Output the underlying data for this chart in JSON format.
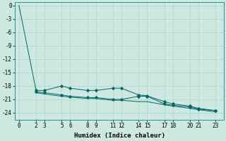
{
  "xlabel": "Humidex (Indice chaleur)",
  "bg_color": "#cce8e0",
  "line_color": "#006666",
  "grid_color": "#aad4cc",
  "ylim": [
    -25.5,
    0.8
  ],
  "xlim": [
    -0.5,
    24
  ],
  "yticks": [
    0,
    -3,
    -6,
    -9,
    -12,
    -15,
    -18,
    -21,
    -24
  ],
  "xticks": [
    0,
    2,
    3,
    5,
    6,
    8,
    9,
    11,
    12,
    14,
    15,
    17,
    18,
    20,
    21,
    23
  ],
  "xtick_labels": [
    "0",
    "2",
    "3",
    "5",
    "6",
    "8",
    "9",
    "11",
    "12",
    "14",
    "15",
    "17",
    "18",
    "20",
    "21",
    "23"
  ],
  "line1_x": [
    0,
    2,
    3,
    5,
    6,
    8,
    9,
    11,
    12,
    14,
    15,
    17,
    18,
    20,
    21,
    23
  ],
  "line1_y": [
    0,
    -19.0,
    -19.0,
    -18.0,
    -18.5,
    -19.0,
    -19.0,
    -18.5,
    -18.5,
    -20.0,
    -20.2,
    -21.5,
    -22.0,
    -22.5,
    -23.0,
    -23.5
  ],
  "line2_x": [
    2,
    3,
    5,
    6,
    8,
    9,
    11,
    12,
    14,
    15,
    17,
    18,
    20,
    21,
    23
  ],
  "line2_y": [
    -19.5,
    -19.8,
    -20.3,
    -20.5,
    -20.8,
    -20.8,
    -21.2,
    -21.2,
    -21.5,
    -21.5,
    -22.2,
    -22.5,
    -23.0,
    -23.3,
    -23.8
  ],
  "line3_x": [
    2,
    3,
    5,
    6,
    8,
    9,
    11,
    12,
    14,
    15,
    17,
    18,
    20,
    21,
    23
  ],
  "line3_y": [
    -19.3,
    -19.5,
    -20.0,
    -20.3,
    -20.6,
    -20.6,
    -21.0,
    -21.0,
    -20.3,
    -20.3,
    -22.0,
    -22.3,
    -22.7,
    -23.2,
    -23.5
  ]
}
